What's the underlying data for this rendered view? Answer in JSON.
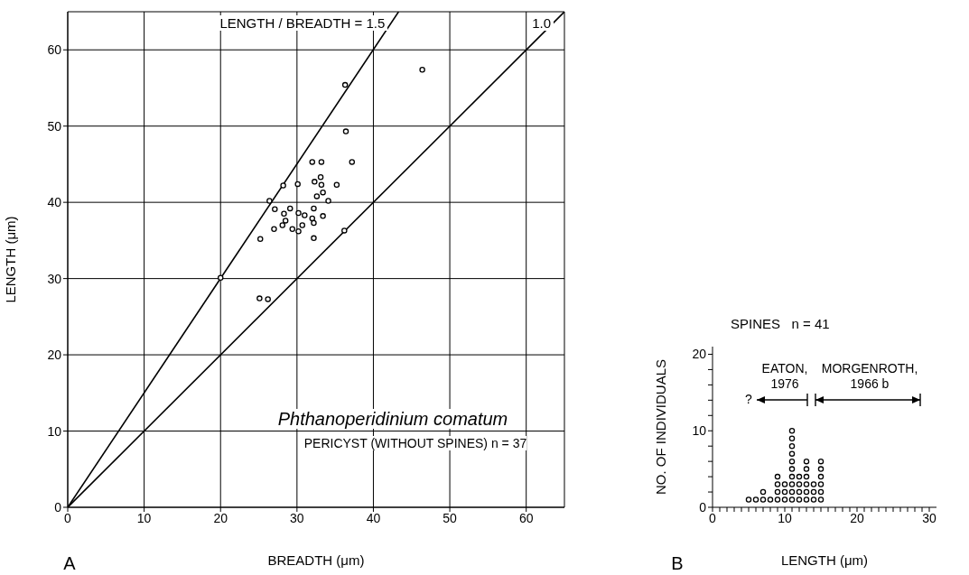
{
  "chart_data": [
    {
      "type": "scatter",
      "xlabel": "BREADTH (μm)",
      "ylabel": "LENGTH (μm)",
      "xlim": [
        0,
        65
      ],
      "ylim": [
        0,
        65
      ],
      "xticks": [
        0,
        10,
        20,
        30,
        40,
        50,
        60
      ],
      "yticks": [
        0,
        10,
        20,
        30,
        40,
        50,
        60
      ],
      "grid": true,
      "marker": "circle",
      "annotations": [
        "Phthanoperidinium comatum",
        "PERICYST (WITHOUT SPINES)   n = 37",
        "A"
      ],
      "series": [
        {
          "color": "#000000",
          "x": [
            46.4,
            36.3,
            36.4,
            32.0,
            33.2,
            37.2,
            33.1,
            32.3,
            33.2,
            35.2,
            28.2,
            30.1,
            33.4,
            32.6,
            34.1,
            26.4,
            27.1,
            29.1,
            32.2,
            30.2,
            31.0,
            28.3,
            28.5,
            32.0,
            32.2,
            33.4,
            28.1,
            30.7,
            27.0,
            29.4,
            30.2,
            25.2,
            32.2,
            36.2,
            20.0,
            25.1,
            26.2
          ],
          "values": [
            57.4,
            55.4,
            49.3,
            45.3,
            45.3,
            45.3,
            43.3,
            42.7,
            42.3,
            42.3,
            42.2,
            42.4,
            41.3,
            40.8,
            40.2,
            40.2,
            39.1,
            39.2,
            39.2,
            38.6,
            38.3,
            38.5,
            37.6,
            37.9,
            37.3,
            38.2,
            37.0,
            37.0,
            36.5,
            36.5,
            36.2,
            35.2,
            35.3,
            36.3,
            30.1,
            27.4,
            27.3
          ]
        },
        {
          "type": "line",
          "name": "LENGTH / BREADTH = 1.5",
          "color": "#000000",
          "marker": "none",
          "x": [
            0,
            43.3
          ],
          "values": [
            0,
            65
          ]
        },
        {
          "type": "line",
          "name": "1.0",
          "color": "#000000",
          "marker": "none",
          "x": [
            0,
            65
          ],
          "values": [
            0,
            65
          ]
        }
      ]
    },
    {
      "type": "scatter",
      "title": "SPINES   n = 41",
      "xlabel": "LENGTH (μm)",
      "ylabel": "NO. OF INDIVIDUALS",
      "xlim": [
        0,
        31
      ],
      "ylim": [
        0,
        21
      ],
      "grid": false,
      "marker": "circle",
      "xticks": [
        0,
        {
          "value": 1,
          "label": null
        },
        {
          "value": 2,
          "label": null
        },
        {
          "value": 3,
          "label": null
        },
        {
          "value": 4,
          "label": null
        },
        {
          "value": 5,
          "label": null
        },
        {
          "value": 6,
          "label": null
        },
        {
          "value": 7,
          "label": null
        },
        {
          "value": 8,
          "label": null
        },
        {
          "value": 9,
          "label": null
        },
        10,
        {
          "value": 11,
          "label": null
        },
        {
          "value": 12,
          "label": null
        },
        {
          "value": 13,
          "label": null
        },
        {
          "value": 14,
          "label": null
        },
        {
          "value": 15,
          "label": null
        },
        {
          "value": 16,
          "label": null
        },
        {
          "value": 17,
          "label": null
        },
        {
          "value": 18,
          "label": null
        },
        {
          "value": 19,
          "label": null
        },
        20,
        {
          "value": 21,
          "label": null
        },
        {
          "value": 22,
          "label": null
        },
        {
          "value": 23,
          "label": null
        },
        {
          "value": 24,
          "label": null
        },
        {
          "value": 25,
          "label": null
        },
        {
          "value": 26,
          "label": null
        },
        {
          "value": 27,
          "label": null
        },
        {
          "value": 28,
          "label": null
        },
        {
          "value": 29,
          "label": null
        },
        30
      ],
      "yticks": [
        0,
        {
          "value": 2,
          "label": null
        },
        {
          "value": 4,
          "label": null
        },
        {
          "value": 6,
          "label": null
        },
        {
          "value": 8,
          "label": null
        },
        10,
        {
          "value": 12,
          "label": null
        },
        {
          "value": 14,
          "label": null
        },
        {
          "value": 16,
          "label": null
        },
        {
          "value": 18,
          "label": null
        },
        20
      ],
      "annotations": [
        "EATON, 1976",
        "MORGENROTH, 1966 b",
        "?",
        "B"
      ],
      "series": [
        {
          "color": "#000000",
          "x": [
            5,
            6,
            7,
            7,
            8,
            9,
            9,
            9,
            9,
            10,
            10,
            10,
            11,
            11,
            11,
            11,
            11,
            11,
            11,
            11,
            11,
            11,
            12,
            12,
            12,
            12,
            13,
            13,
            13,
            13,
            13,
            13,
            14,
            14,
            14,
            15,
            15,
            15,
            15,
            15,
            15
          ],
          "values": [
            1,
            1,
            1,
            2,
            1,
            1,
            2,
            3,
            4,
            1,
            2,
            3,
            1,
            2,
            3,
            4,
            5,
            6,
            7,
            8,
            9,
            10,
            1,
            2,
            3,
            4,
            1,
            2,
            3,
            4,
            5,
            6,
            1,
            2,
            3,
            1,
            2,
            3,
            4,
            5,
            6
          ]
        }
      ]
    }
  ]
}
